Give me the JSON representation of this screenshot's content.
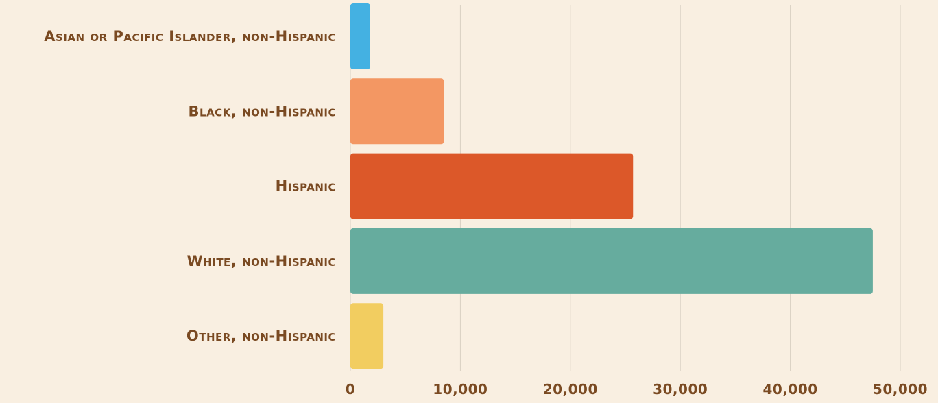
{
  "chart_data": {
    "type": "bar",
    "orientation": "horizontal",
    "categories": [
      "Asian or Pacific Islander, non-Hispanic",
      "Black, non-Hispanic",
      "Hispanic",
      "White, non-Hispanic",
      "Other, non-Hispanic"
    ],
    "values": [
      1800,
      8500,
      25700,
      47500,
      3000
    ],
    "colors": [
      "#44b1e2",
      "#f39763",
      "#dc5829",
      "#66ac9e",
      "#f2cd60"
    ],
    "xlim": [
      0,
      50000
    ],
    "xticks": [
      0,
      10000,
      20000,
      30000,
      40000,
      50000
    ],
    "xtick_labels": [
      "0",
      "10,000",
      "20,000",
      "30,000",
      "40,000",
      "50,000"
    ],
    "grid": true,
    "title": "",
    "xlabel": "",
    "ylabel": ""
  }
}
